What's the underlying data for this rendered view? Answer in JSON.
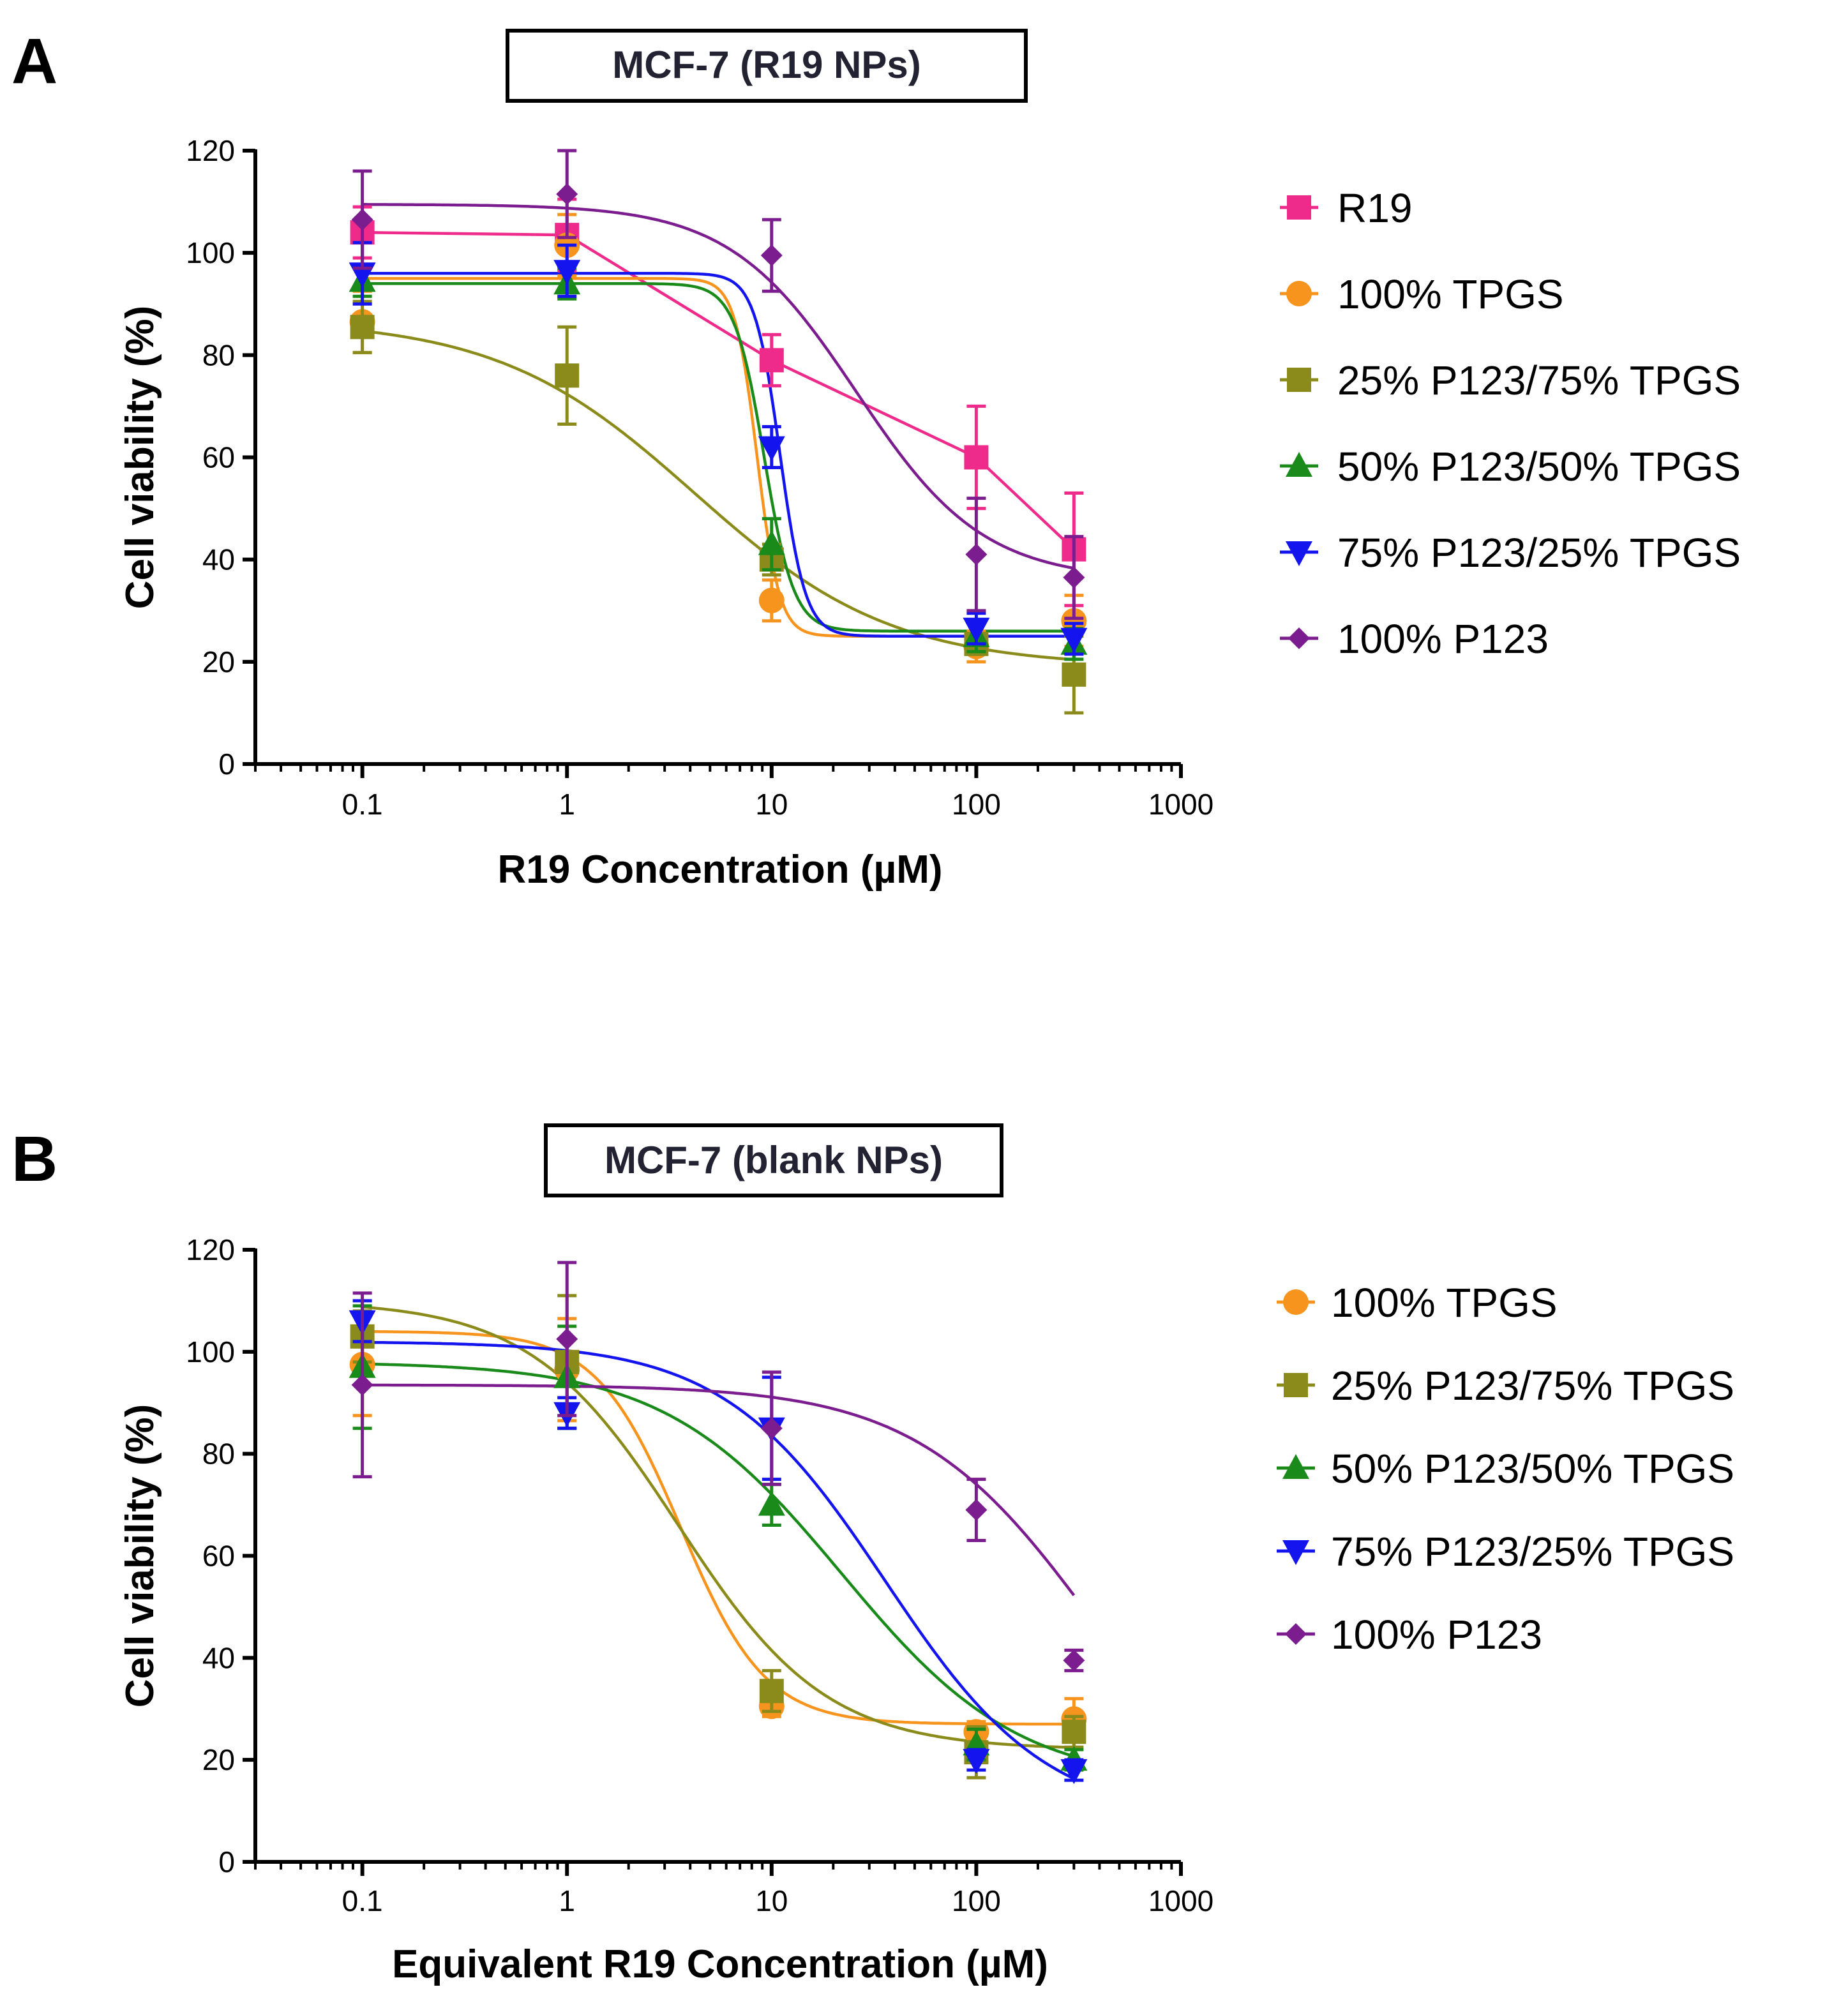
{
  "chart_data": [
    {
      "type": "scatter",
      "panel": "A",
      "title": "MCF-7 (R19 NPs)",
      "xlabel": "R19 Concentration (µM)",
      "ylabel": "Cell viability (%)",
      "xscale": "log",
      "xlim": [
        0.03,
        1000
      ],
      "ylim": [
        0,
        120
      ],
      "xticks": [
        0.1,
        1,
        10,
        100,
        1000
      ],
      "xtick_labels": [
        "0.1",
        "1",
        "10",
        "100",
        "1000"
      ],
      "yticks": [
        0,
        20,
        40,
        60,
        80,
        100,
        120
      ],
      "ytick_labels": [
        "0",
        "20",
        "40",
        "60",
        "80",
        "100",
        "120"
      ],
      "x": [
        0.1,
        1,
        10,
        100,
        300
      ],
      "legend_position": "right",
      "series": [
        {
          "name": "R19",
          "color": "#ee2a8a",
          "marker": "square",
          "fit": "connect",
          "values": [
            104,
            103.5,
            79,
            60,
            42
          ],
          "errors": [
            5,
            7,
            5,
            10,
            11
          ]
        },
        {
          "name": "100% TPGS",
          "color": "#f7941d",
          "marker": "circle",
          "fit": "sigmoid",
          "values": [
            86.5,
            101.5,
            32,
            23,
            28
          ],
          "errors": [
            6,
            6,
            4,
            3,
            5
          ],
          "curve": {
            "top": 95,
            "bottom": 25,
            "ec50": 8.5,
            "hill": 8
          }
        },
        {
          "name": "25% P123/75% TPGS",
          "color": "#8b8b1b",
          "marker": "square",
          "fit": "sigmoid",
          "values": [
            85.5,
            76,
            40,
            23.5,
            17.5
          ],
          "errors": [
            5,
            9.5,
            3,
            2,
            7.5
          ],
          "curve": {
            "top": 87,
            "bottom": 19,
            "ec50": 4.2,
            "hill": 0.9
          }
        },
        {
          "name": "50% P123/50% TPGS",
          "color": "#1a8a1a",
          "marker": "triangle-up",
          "fit": "sigmoid",
          "values": [
            94.5,
            94,
            43,
            25,
            23.5
          ],
          "errors": [
            3,
            3,
            5,
            3,
            3
          ],
          "curve": {
            "top": 94,
            "bottom": 26,
            "ec50": 9.2,
            "hill": 6
          }
        },
        {
          "name": "75% P123/25% TPGS",
          "color": "#1414ee",
          "marker": "triangle-down",
          "fit": "sigmoid",
          "values": [
            96,
            96.5,
            62,
            26.5,
            24.5
          ],
          "errors": [
            6,
            5,
            4,
            3,
            3
          ],
          "curve": {
            "top": 96,
            "bottom": 25,
            "ec50": 11,
            "hill": 7
          }
        },
        {
          "name": "100% P123",
          "color": "#7b1c8f",
          "marker": "diamond",
          "fit": "sigmoid",
          "values": [
            106.5,
            111.5,
            99.5,
            41,
            36.5
          ],
          "errors": [
            9.5,
            8.5,
            7,
            11,
            8
          ],
          "curve": {
            "top": 109.5,
            "bottom": 36,
            "ec50": 26,
            "hill": 1.4
          }
        }
      ]
    },
    {
      "type": "scatter",
      "panel": "B",
      "title": "MCF-7 (blank NPs)",
      "xlabel": "Equivalent R19 Concentration (µM)",
      "ylabel": "Cell viability (%)",
      "xscale": "log",
      "xlim": [
        0.03,
        1000
      ],
      "ylim": [
        0,
        120
      ],
      "xticks": [
        0.1,
        1,
        10,
        100,
        1000
      ],
      "xtick_labels": [
        "0.1",
        "1",
        "10",
        "100",
        "1000"
      ],
      "yticks": [
        0,
        20,
        40,
        60,
        80,
        100,
        120
      ],
      "ytick_labels": [
        "0",
        "20",
        "40",
        "60",
        "80",
        "100",
        "120"
      ],
      "x": [
        0.1,
        1,
        10,
        100,
        300
      ],
      "legend_position": "right",
      "series": [
        {
          "name": "100% TPGS",
          "color": "#f7941d",
          "marker": "circle",
          "fit": "sigmoid",
          "values": [
            97.5,
            96.5,
            30.5,
            25.5,
            28
          ],
          "errors": [
            10,
            10,
            2,
            2,
            4
          ],
          "curve": {
            "top": 104,
            "bottom": 27,
            "ec50": 3.6,
            "hill": 2.1
          }
        },
        {
          "name": "25% P123/75% TPGS",
          "color": "#8b8b1b",
          "marker": "square",
          "fit": "sigmoid",
          "values": [
            103,
            98,
            33.5,
            21.5,
            25.5
          ],
          "errors": [
            5,
            13,
            4,
            5,
            3
          ],
          "curve": {
            "top": 110,
            "bottom": 22,
            "ec50": 3.5,
            "hill": 1.2
          }
        },
        {
          "name": "50% P123/50% TPGS",
          "color": "#1a8a1a",
          "marker": "triangle-up",
          "fit": "sigmoid",
          "values": [
            97,
            95,
            70,
            23,
            20
          ],
          "errors": [
            12,
            10,
            4,
            3,
            2
          ],
          "curve": {
            "top": 98,
            "bottom": 15,
            "ec50": 22,
            "hill": 1.0
          }
        },
        {
          "name": "75% P123/25% TPGS",
          "color": "#1414ee",
          "marker": "triangle-down",
          "fit": "sigmoid",
          "values": [
            106,
            88,
            85,
            20,
            18
          ],
          "errors": [
            4,
            3,
            10,
            2,
            2
          ],
          "curve": {
            "top": 102,
            "bottom": 8,
            "ec50": 36,
            "hill": 1.1
          }
        },
        {
          "name": "100% P123",
          "color": "#7b1c8f",
          "marker": "diamond",
          "fit": "sigmoid",
          "values": [
            93.5,
            102.5,
            85,
            69,
            39.5
          ],
          "errors": [
            18,
            15,
            11,
            6,
            2
          ],
          "curve": {
            "top": 93.5,
            "bottom": 0,
            "ec50": 380,
            "hill": 1.0
          }
        }
      ]
    }
  ]
}
